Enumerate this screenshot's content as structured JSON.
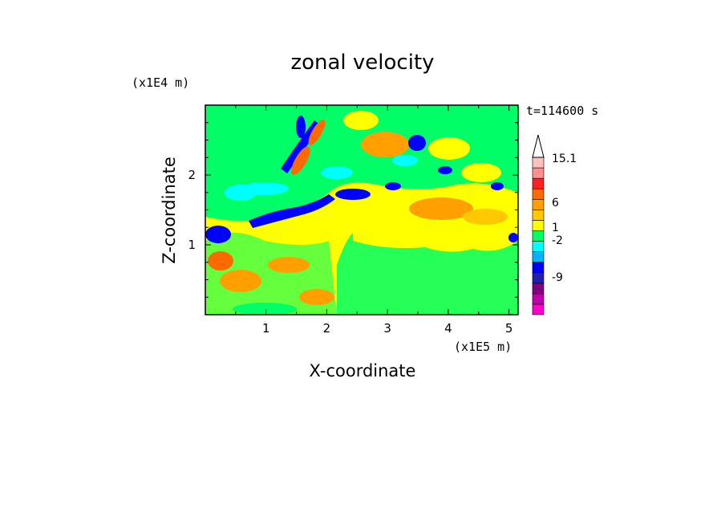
{
  "chart_data": {
    "type": "heatmap",
    "title": "zonal velocity",
    "xlabel": "X-coordinate",
    "ylabel": "Z-coordinate",
    "x_unit": "(x1E5 m)",
    "y_unit": "(x1E4 m)",
    "time_label": "t=114600 s",
    "xlim": [
      0,
      5.15
    ],
    "ylim": [
      0,
      3.0
    ],
    "x_ticks": [
      1,
      2,
      3,
      4,
      5
    ],
    "y_ticks": [
      1,
      2
    ],
    "colorbar": {
      "labels": [
        "15.1",
        "6",
        "1",
        "-2",
        "-9"
      ],
      "levels": [
        {
          "color": "#ff00cc"
        },
        {
          "color": "#c000a8"
        },
        {
          "color": "#800080"
        },
        {
          "color": "#2020b0"
        },
        {
          "color": "#0000ff"
        },
        {
          "color": "#00b4ff"
        },
        {
          "color": "#00ffff"
        },
        {
          "color": "#00ff66"
        },
        {
          "color": "#ffff00"
        },
        {
          "color": "#ffc800"
        },
        {
          "color": "#ffa000"
        },
        {
          "color": "#ff6a00"
        },
        {
          "color": "#ff2020"
        },
        {
          "color": "#ff9090"
        },
        {
          "color": "#ffc0c0"
        }
      ],
      "extend_max": true
    }
  }
}
